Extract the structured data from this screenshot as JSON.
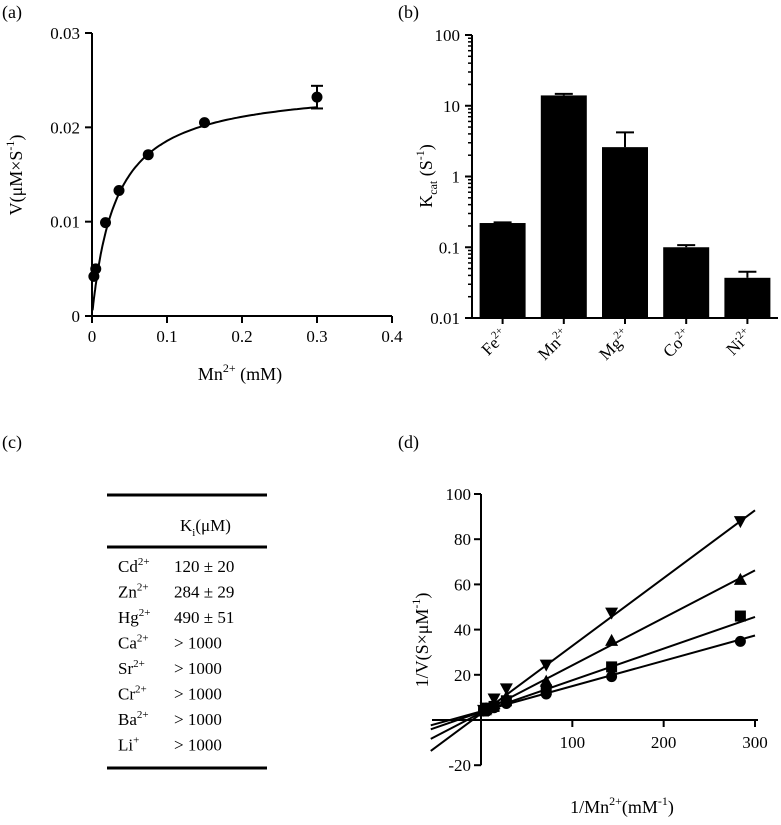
{
  "chart_data": [
    {
      "panel": "(a)",
      "type": "scatter",
      "x_title": {
        "base": "Mn",
        "sup": "2+",
        "rest": " (mM)"
      },
      "y_title": {
        "pre": "V(μM×S",
        "sup": "-1",
        "post": ")"
      },
      "xlim": [
        0,
        0.4
      ],
      "ylim": [
        0,
        0.03
      ],
      "x_ticks": [
        "0",
        "0.1",
        "0.2",
        "0.3",
        "0.4"
      ],
      "y_ticks": [
        "0",
        "0.01",
        "0.02",
        "0.03"
      ],
      "points": [
        {
          "x": 0.0025,
          "y": 0.0042
        },
        {
          "x": 0.005,
          "y": 0.005
        },
        {
          "x": 0.018,
          "y": 0.0099
        },
        {
          "x": 0.036,
          "y": 0.0133
        },
        {
          "x": 0.075,
          "y": 0.0171
        },
        {
          "x": 0.15,
          "y": 0.0205
        },
        {
          "x": 0.3,
          "y": 0.0232,
          "err": 0.0012
        }
      ],
      "fit": {
        "model": "michaelis-menten",
        "vmax": 0.0245,
        "km": 0.032
      }
    },
    {
      "panel": "(b)",
      "type": "bar",
      "y_scale": "log",
      "ylim": [
        0.01,
        100
      ],
      "y_ticks": [
        "0.01",
        "0.1",
        "1",
        "10",
        "100"
      ],
      "y_title": {
        "base": "K",
        "sub": "cat",
        "rest": " (S",
        "sup": "-1",
        "post": ")"
      },
      "categories": [
        {
          "base": "Fe",
          "sup": "2+"
        },
        {
          "base": "Mn",
          "sup": "2+"
        },
        {
          "base": "Mg",
          "sup": "2+"
        },
        {
          "base": "Co",
          "sup": "2+"
        },
        {
          "base": "Ni",
          "sup": "2+"
        }
      ],
      "values": [
        0.22,
        14,
        2.6,
        0.1,
        0.037
      ],
      "errors": [
        0.005,
        0.7,
        1.6,
        0.007,
        0.008
      ]
    },
    {
      "panel": "(c)",
      "type": "table",
      "header": {
        "base": "K",
        "sub": "i",
        "rest": "(μM)"
      },
      "rows": [
        {
          "ion": "Cd",
          "charge": "2+",
          "value": "120 ± 20"
        },
        {
          "ion": "Zn",
          "charge": "2+",
          "value": "284 ± 29"
        },
        {
          "ion": "Hg",
          "charge": "2+",
          "value": "490 ± 51"
        },
        {
          "ion": "Ca",
          "charge": "2+",
          "value": "> 1000"
        },
        {
          "ion": "Sr",
          "charge": "2+",
          "value": "> 1000"
        },
        {
          "ion": "Cr",
          "charge": "2+",
          "value": "> 1000"
        },
        {
          "ion": "Ba",
          "charge": "2+",
          "value": "> 1000"
        },
        {
          "ion": "Li",
          "charge": "+",
          "value": "> 1000"
        }
      ]
    },
    {
      "panel": "(d)",
      "type": "scatter",
      "x_title": {
        "pre": "1/Mn",
        "sup": "2+",
        "post": "(mM",
        "sup2": "-1",
        "end": ")"
      },
      "y_title": {
        "pre": "1/V(S×μM",
        "sup": "-1",
        "post": ")"
      },
      "xlim": [
        -5,
        300
      ],
      "ylim": [
        -20,
        100
      ],
      "x_ticks": [
        "100",
        "200",
        "300"
      ],
      "y_ticks": [
        "-20",
        "20",
        "40",
        "60",
        "80",
        "100"
      ],
      "series": [
        {
          "marker": "circle",
          "slope": 0.112,
          "intercept": 3.8,
          "x": [
            2.8,
            5.5,
            14.3,
            27.8,
            71.4,
            143,
            284
          ],
          "y": [
            4.1,
            4.4,
            5.4,
            7.3,
            11.5,
            19.2,
            34.8
          ]
        },
        {
          "marker": "square",
          "slope": 0.14,
          "intercept": 3.6,
          "x": [
            2.8,
            5.5,
            14.3,
            27.8,
            71.4,
            143,
            284
          ],
          "y": [
            4.0,
            4.5,
            6.0,
            8.5,
            13.5,
            23.5,
            46
          ]
        },
        {
          "marker": "triangle-up",
          "slope": 0.21,
          "intercept": 3.2,
          "x": [
            2.8,
            5.5,
            14.3,
            27.8,
            71.4,
            143,
            284
          ],
          "y": [
            4.0,
            4.8,
            7.0,
            10.0,
            17.0,
            35.0,
            62
          ]
        },
        {
          "marker": "triangle-down",
          "slope": 0.3,
          "intercept": 2.8,
          "x": [
            2.8,
            5.5,
            14.3,
            27.8,
            71.4,
            143,
            284
          ],
          "y": [
            4.5,
            5.5,
            9.5,
            14.0,
            24.5,
            47.5,
            88
          ]
        }
      ]
    }
  ]
}
